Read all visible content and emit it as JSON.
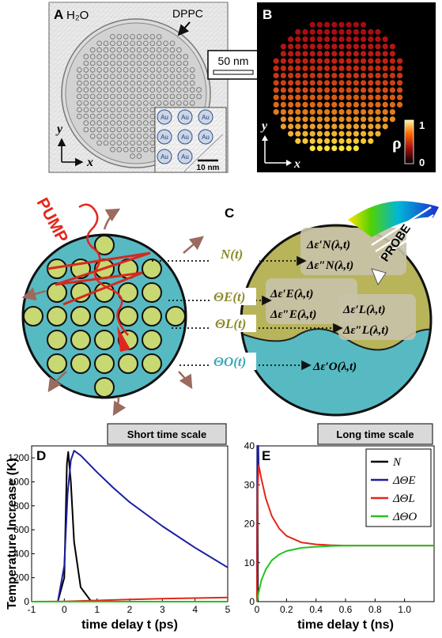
{
  "panelA": {
    "label": "A",
    "water": "H₂O",
    "lipid": "DPPC",
    "inset_labels": [
      "Au",
      "Au",
      "Au",
      "Au",
      "Au",
      "Au",
      "Au",
      "Au"
    ],
    "inset_scale": "10 nm",
    "axis_y": "y",
    "axis_x": "x"
  },
  "scalebar": {
    "text": "50 nm"
  },
  "panelB": {
    "label": "B",
    "axis_y": "y",
    "axis_x": "x",
    "colorbar_label": "ρ",
    "colorbar_max": "1",
    "colorbar_min": "0"
  },
  "panelC": {
    "label": "C",
    "pump": "PUMP",
    "probe": "PROBE",
    "vars": {
      "n": "N(t)",
      "te": "ΘE(t)",
      "tl": "ΘL(t)",
      "to": "ΘO(t)"
    },
    "eps": {
      "n1": "Δε′N(λ,t)",
      "n2": "Δε″N(λ,t)",
      "e1": "Δε′E(λ,t)",
      "e2": "Δε″E(λ,t)",
      "l1": "Δε′L(λ,t)",
      "l2": "Δε″L(λ,t)",
      "o1": "Δε′O(λ,t)"
    }
  },
  "ylabel_shared": "Temperature Increase (K)",
  "chart_data": [
    {
      "panel": "D",
      "type": "line",
      "title": "Short time scale",
      "xlabel": "time delay t (ps)",
      "ylabel": "Temperature Increase (K)",
      "xlim": [
        -1,
        5
      ],
      "ylim": [
        0,
        1300
      ],
      "xticks": [
        "-1",
        "0",
        "1",
        "2",
        "3",
        "4",
        "5"
      ],
      "yticks": [
        "0",
        "200",
        "400",
        "600",
        "800",
        "1000",
        "1200"
      ],
      "series": [
        {
          "color": "#000000",
          "x": [
            -0.2,
            0.0,
            0.08,
            0.12,
            0.2,
            0.3,
            0.5,
            0.8,
            1.2
          ],
          "y": [
            0,
            200,
            1150,
            1250,
            1000,
            500,
            120,
            10,
            0
          ]
        },
        {
          "color": "#1b1fa0",
          "x": [
            -0.2,
            0.0,
            0.1,
            0.2,
            0.3,
            0.5,
            1.0,
            1.5,
            2.0,
            3.0,
            4.0,
            5.0
          ],
          "y": [
            0,
            300,
            900,
            1180,
            1260,
            1220,
            1080,
            950,
            830,
            630,
            450,
            285
          ]
        },
        {
          "color": "#e3261d",
          "x": [
            -1.0,
            0.0,
            1.0,
            2.0,
            3.0,
            4.0,
            5.0
          ],
          "y": [
            0,
            2,
            10,
            18,
            25,
            30,
            35
          ]
        },
        {
          "color": "#22c41e",
          "x": [
            -1.0,
            0.0,
            5.0
          ],
          "y": [
            0,
            0,
            0
          ]
        }
      ]
    },
    {
      "panel": "E",
      "type": "line",
      "title": "Long time scale",
      "xlabel": "time delay t (ns)",
      "xlim": [
        0,
        1.2
      ],
      "ylim": [
        0,
        40
      ],
      "xticks": [
        "0",
        "0.2",
        "0.4",
        "0.6",
        "0.8",
        "1.0"
      ],
      "yticks": [
        "0",
        "10",
        "20",
        "30",
        "40"
      ],
      "legend_placement": "top-right",
      "legend": [
        "N",
        "ΔΘE",
        "ΔΘL",
        "ΔΘO"
      ],
      "series": [
        {
          "name": "N",
          "color": "#000000",
          "x": [
            0.0,
            0.002,
            0.004,
            0.006
          ],
          "y": [
            0,
            40,
            40,
            0
          ]
        },
        {
          "name": "ΔΘE",
          "color": "#1b1fa0",
          "x": [
            0.0,
            0.003,
            0.006,
            0.009,
            0.012
          ],
          "y": [
            0,
            40,
            40,
            40,
            34
          ]
        },
        {
          "name": "ΔΘL",
          "color": "#e3261d",
          "x": [
            0.0,
            0.004,
            0.012,
            0.03,
            0.06,
            0.1,
            0.15,
            0.2,
            0.3,
            0.4,
            0.5,
            0.6,
            0.8,
            1.0,
            1.2
          ],
          "y": [
            0,
            28,
            35,
            31.5,
            26.5,
            22,
            18.8,
            16.9,
            15.2,
            14.7,
            14.5,
            14.4,
            14.4,
            14.4,
            14.4
          ]
        },
        {
          "name": "ΔΘO",
          "color": "#22c41e",
          "x": [
            0.0,
            0.01,
            0.03,
            0.06,
            0.1,
            0.15,
            0.2,
            0.3,
            0.4,
            0.5,
            0.6,
            0.8,
            1.0,
            1.2
          ],
          "y": [
            0,
            2.2,
            5.5,
            8.3,
            10.6,
            12.1,
            13.0,
            13.8,
            14.1,
            14.3,
            14.4,
            14.4,
            14.4,
            14.4
          ]
        }
      ]
    }
  ]
}
